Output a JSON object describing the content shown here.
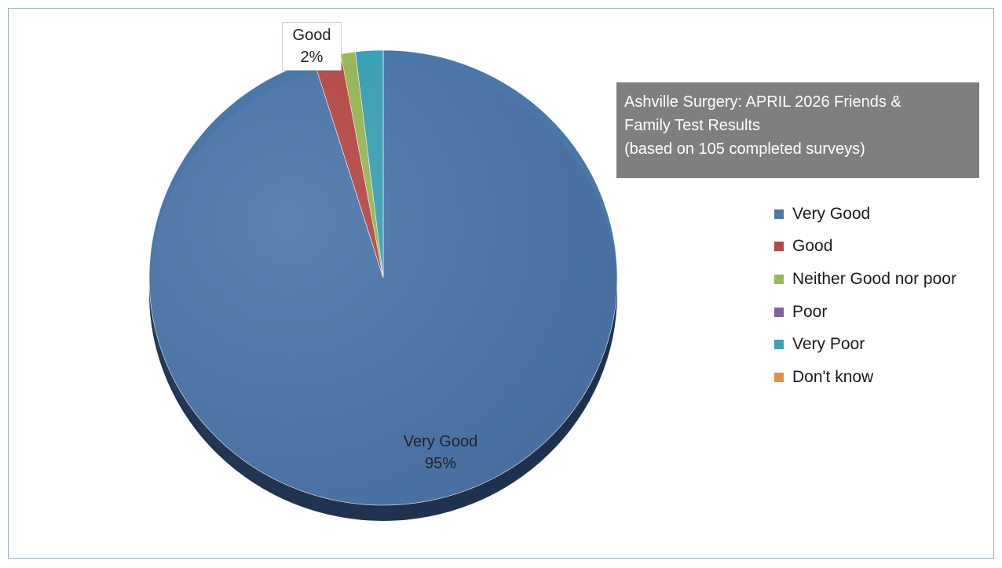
{
  "chart_data": {
    "type": "pie",
    "title_lines": [
      "Ashville Surgery: APRIL 2026 Friends &",
      "Family Test Results",
      "(based on 105 completed surveys)"
    ],
    "legend_position": "right",
    "slices": [
      {
        "label": "Very Good",
        "percent": 95.2,
        "color": "#4a76aa"
      },
      {
        "label": "Good",
        "percent": 1.9,
        "color": "#b94743"
      },
      {
        "label": "Neither Good nor poor",
        "percent": 1.0,
        "color": "#98b954"
      },
      {
        "label": "Poor",
        "percent": 0,
        "color": "#7e62a1"
      },
      {
        "label": "Very Poor",
        "percent": 1.9,
        "color": "#3aa2b8"
      },
      {
        "label": "Don't know",
        "percent": 0,
        "color": "#e88d3a"
      }
    ],
    "data_labels": [
      {
        "category": "Good",
        "name": "Good",
        "value": "2%"
      },
      {
        "category": "Very Good",
        "name": "Very Good",
        "value": "95%"
      }
    ]
  }
}
